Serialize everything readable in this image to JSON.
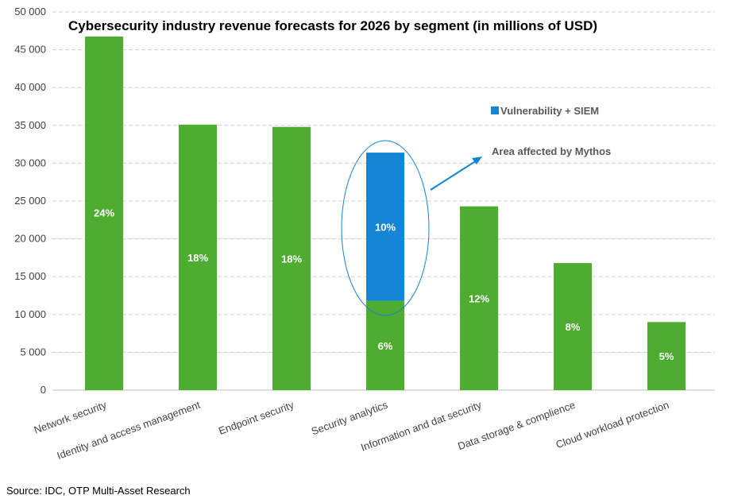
{
  "chart_data": {
    "type": "bar",
    "stacked": true,
    "title": "Cybersecurity industry revenue forecasts for 2026 by segment (in millions of USD)",
    "xlabel": "",
    "ylabel": "",
    "ylim": [
      0,
      50000
    ],
    "yticks": [
      0,
      5000,
      10000,
      15000,
      20000,
      25000,
      30000,
      35000,
      40000,
      45000,
      50000
    ],
    "ytick_labels": [
      "0",
      "5 000",
      "10 000",
      "15 000",
      "20 000",
      "25 000",
      "30 000",
      "35 000",
      "40 000",
      "45 000",
      "50 000"
    ],
    "grid": "horizontal dashed",
    "categories": [
      "Network security",
      "Identity and access management",
      "Endpoint security",
      "Security analytics",
      "Information and dat security",
      "Data storage & complience",
      "Cloud workload protection"
    ],
    "series": [
      {
        "values": [
          47000,
          35100,
          34800,
          11800,
          24300,
          16800,
          9000
        ],
        "color": "#4EAC31",
        "data_labels": [
          "24%",
          "18%",
          "18%",
          "6%",
          "12%",
          "8%",
          "5%"
        ]
      },
      {
        "name": "Vulnerability + SIEM",
        "values": [
          0,
          0,
          0,
          19600,
          0,
          0,
          0
        ],
        "color": "#1585D4",
        "data_labels": [
          "",
          "",
          "",
          "10%",
          "",
          "",
          ""
        ]
      }
    ],
    "legend": "top-right",
    "annotation": "Area affected by Mythos",
    "annotation_color": "#1585D4"
  },
  "source": "Source: IDC, OTP Multi-Asset Research"
}
